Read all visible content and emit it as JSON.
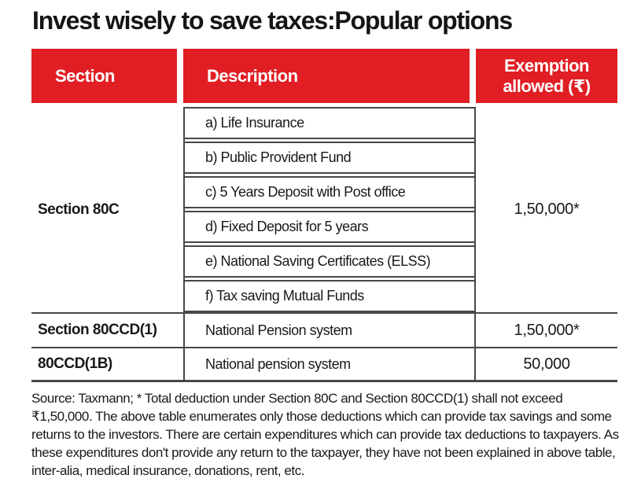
{
  "chart_data": {
    "type": "table",
    "title": "Invest wisely to save taxes:Popular options",
    "columns": {
      "section": "Section",
      "description": "Description",
      "exemption_line1": "Exemption",
      "exemption_line2": "allowed (₹)"
    },
    "groups": [
      {
        "section": "Section 80C",
        "items": [
          "a) Life Insurance",
          "b) Public Provident Fund",
          "c) 5 Years Deposit with Post office",
          "d) Fixed Deposit for 5 years",
          "e) National Saving Certificates (ELSS)",
          "f) Tax saving Mutual Funds"
        ],
        "exemption": "1,50,000*"
      },
      {
        "section": "Section 80CCD(1)",
        "items": [
          "National Pension system"
        ],
        "exemption": "1,50,000*"
      },
      {
        "section": "80CCD(1B)",
        "items": [
          "National pension system"
        ],
        "exemption": "50,000"
      }
    ],
    "footnote": "Source: Taxmann;  * Total deduction under Section 80C and Section 80CCD(1) shall not exceed ₹1,50,000.  The above table enumerates only those deductions which can provide tax savings and some returns to the investors. There are certain expenditures which can provide tax deductions to taxpayers. As these expenditures don't provide any return to the taxpayer, they have not been explained in above table, inter-alia, medical insurance, donations, rent, etc.",
    "source": "Taxmann"
  },
  "colors": {
    "header_red": "#e01e24",
    "header_text": "#ffffff",
    "border_gray": "#474747",
    "text": "#191919",
    "background": "#ffffff"
  }
}
